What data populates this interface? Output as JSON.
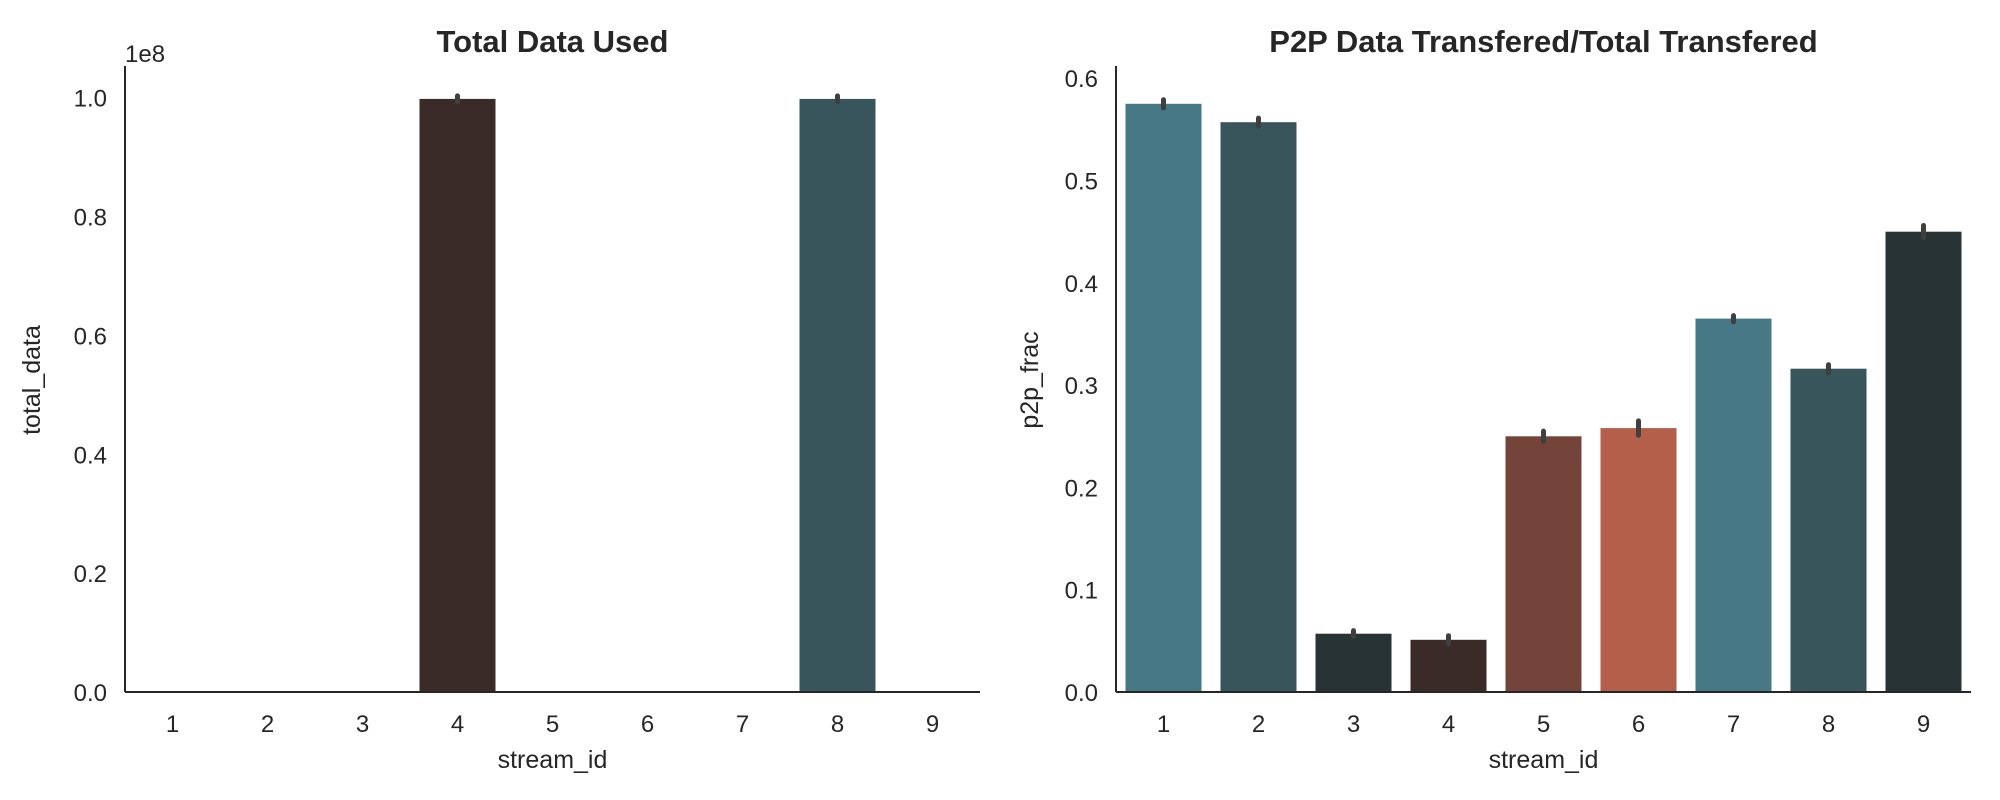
{
  "chart_data": [
    {
      "type": "bar",
      "title": "Total Data Used",
      "xlabel": "stream_id",
      "ylabel": "total_data",
      "y_offset_label": "1e8",
      "y_multiplier": 100000000,
      "categories": [
        "1",
        "2",
        "3",
        "4",
        "5",
        "6",
        "7",
        "8",
        "9"
      ],
      "values": [
        0,
        0,
        0,
        99800000,
        0,
        0,
        0,
        99800000,
        0
      ],
      "error_top": [
        0,
        0,
        0,
        100300000,
        0,
        0,
        0,
        100300000,
        0
      ],
      "ylim": [
        0,
        105000000
      ],
      "yticks": [
        "0.0",
        "0.2",
        "0.4",
        "0.6",
        "0.8",
        "1.0"
      ],
      "ytick_values": [
        0,
        20000000,
        40000000,
        60000000,
        80000000,
        100000000
      ],
      "colors": [
        "#477886",
        "#38555c",
        "#283336",
        "#3b2b28",
        "#74443a",
        "#b35f49",
        "#477886",
        "#38555c",
        "#283336"
      ],
      "grid": false,
      "legend": "none"
    },
    {
      "type": "bar",
      "title": "P2P Data Transfered/Total Transfered",
      "xlabel": "stream_id",
      "ylabel": "p2p_frac",
      "categories": [
        "1",
        "2",
        "3",
        "4",
        "5",
        "6",
        "7",
        "8",
        "9"
      ],
      "values": [
        0.575,
        0.557,
        0.057,
        0.051,
        0.25,
        0.258,
        0.365,
        0.316,
        0.45
      ],
      "error_top": [
        0.579,
        0.561,
        0.06,
        0.055,
        0.255,
        0.265,
        0.368,
        0.32,
        0.456
      ],
      "ylim": [
        0,
        0.61
      ],
      "yticks": [
        "0.0",
        "0.1",
        "0.2",
        "0.3",
        "0.4",
        "0.5",
        "0.6"
      ],
      "ytick_values": [
        0,
        0.1,
        0.2,
        0.3,
        0.4,
        0.5,
        0.6
      ],
      "colors": [
        "#477886",
        "#38555c",
        "#283336",
        "#3b2b28",
        "#74443a",
        "#b35f49",
        "#477886",
        "#38555c",
        "#283336"
      ],
      "grid": false,
      "legend": "none"
    }
  ]
}
